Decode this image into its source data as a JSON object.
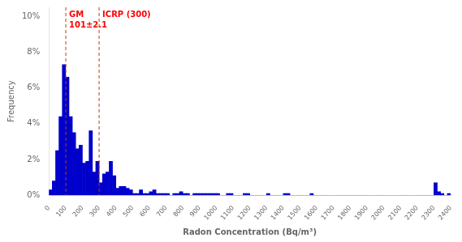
{
  "chart_data": {
    "type": "histogram",
    "title": "",
    "xlabel": "Radon Concentration (Bq/m³)",
    "ylabel": "Frequency",
    "xlim": [
      0,
      2400
    ],
    "ylim": [
      0,
      0.105
    ],
    "xticks": [
      0,
      100,
      200,
      300,
      400,
      500,
      600,
      700,
      800,
      900,
      1000,
      1100,
      1200,
      1300,
      1400,
      1500,
      1600,
      1700,
      1800,
      1900,
      2000,
      2100,
      2200,
      2300,
      2400
    ],
    "yticks": [
      {
        "value": 0.0,
        "label": "0%"
      },
      {
        "value": 0.02,
        "label": "2%"
      },
      {
        "value": 0.04,
        "label": "4%"
      },
      {
        "value": 0.06,
        "label": "6%"
      },
      {
        "value": 0.08,
        "label": "8%"
      },
      {
        "value": 0.1,
        "label": "10%"
      }
    ],
    "color": "#0000CC",
    "grid": false,
    "bins": [
      0,
      20,
      40,
      60,
      80,
      100,
      120,
      140,
      160,
      180,
      200,
      220,
      240,
      260,
      280,
      300,
      320,
      340,
      360,
      380,
      400,
      420,
      440,
      460,
      480,
      500,
      520,
      540,
      560,
      580,
      600,
      620,
      640,
      660,
      680,
      700,
      720,
      740,
      760,
      780,
      800,
      820,
      840,
      860,
      880,
      900,
      920,
      940,
      960,
      980,
      1000,
      1020,
      1040,
      1060,
      1080,
      1100,
      1120,
      1140,
      1160,
      1180,
      1200,
      1220,
      1240,
      1260,
      1280,
      1300,
      1320,
      1340,
      1360,
      1380,
      1400,
      1420,
      1440,
      1460,
      1480,
      1500,
      1520,
      1540,
      1560,
      1580,
      1600,
      1620,
      1640,
      1660,
      1680,
      1700,
      1720,
      1740,
      1760,
      1780,
      1800,
      1820,
      1840,
      1860,
      1880,
      1900,
      1920,
      1940,
      1960,
      1980,
      2000,
      2020,
      2040,
      2060,
      2080,
      2100,
      2120,
      2140,
      2160,
      2180,
      2200,
      2220,
      2240,
      2260,
      2280,
      2300,
      2320,
      2340,
      2360,
      2380,
      2400
    ],
    "values": [
      0.003,
      0.008,
      0.025,
      0.044,
      0.073,
      0.066,
      0.044,
      0.035,
      0.026,
      0.028,
      0.018,
      0.019,
      0.036,
      0.013,
      0.019,
      0.007,
      0.012,
      0.013,
      0.019,
      0.011,
      0.004,
      0.005,
      0.005,
      0.004,
      0.003,
      0.001,
      0.001,
      0.003,
      0.001,
      0.001,
      0.002,
      0.003,
      0.001,
      0.001,
      0.001,
      0.001,
      0.0,
      0.001,
      0.001,
      0.002,
      0.001,
      0.001,
      0.0,
      0.001,
      0.001,
      0.001,
      0.001,
      0.001,
      0.001,
      0.001,
      0.001,
      0.0,
      0.0,
      0.001,
      0.001,
      0.0,
      0.0,
      0.0,
      0.001,
      0.001,
      0.0,
      0.0,
      0.0,
      0.0,
      0.0,
      0.001,
      0.0,
      0.0,
      0.0,
      0.0,
      0.001,
      0.001,
      0.0,
      0.0,
      0.0,
      0.0,
      0.0,
      0.0,
      0.001,
      0.0,
      0.0,
      0.0,
      0.0,
      0.0,
      0.0,
      0.0,
      0.0,
      0.0,
      0.0,
      0.0,
      0.0,
      0.0,
      0.0,
      0.0,
      0.0,
      0.0,
      0.0,
      0.0,
      0.0,
      0.0,
      0.0,
      0.0,
      0.0,
      0.0,
      0.0,
      0.0,
      0.0,
      0.0,
      0.0,
      0.0,
      0.0,
      0.0,
      0.0,
      0.0,
      0.0,
      0.007,
      0.002,
      0.001,
      0.0,
      0.001
    ],
    "annotations": [
      {
        "x": 101,
        "color": "#B84000",
        "line_style": "dashed",
        "text": [
          "GM",
          "101±2.1"
        ]
      },
      {
        "x": 300,
        "color": "#B84000",
        "line_style": "dashed",
        "text": [
          "ICRP (300)"
        ]
      }
    ]
  }
}
